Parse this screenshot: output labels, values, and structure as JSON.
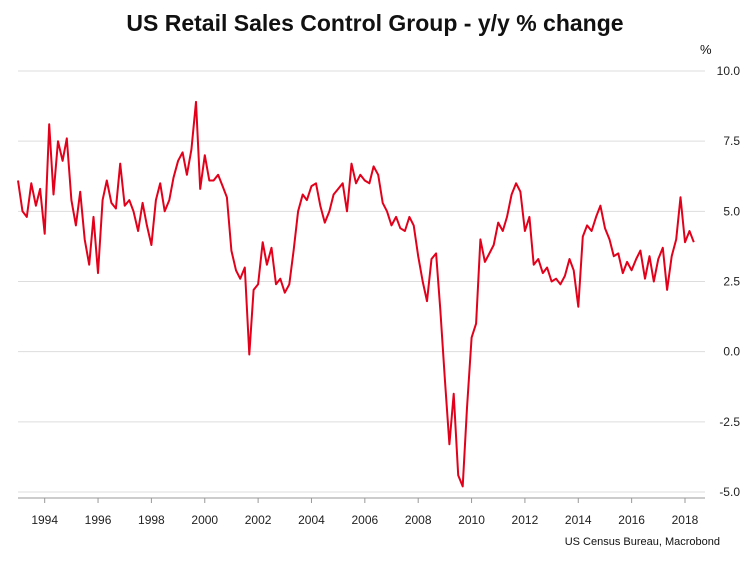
{
  "title": "US Retail Sales Control Group - y/y % change",
  "unit": "%",
  "source": "US Census Bureau, Macrobond",
  "chart_data": {
    "type": "line",
    "title": "US Retail Sales Control Group - y/y % change",
    "xlabel": "",
    "ylabel": "%",
    "xlim": [
      1993.0,
      2018.75
    ],
    "ylim": [
      -5.0,
      10.0
    ],
    "yticks": [
      10.0,
      7.5,
      5.0,
      2.5,
      0.0,
      -2.5,
      -5.0
    ],
    "ytick_labels": [
      "10.0",
      "7.5",
      "5.0",
      "2.5",
      "0.0",
      "-2.5",
      "-5.0"
    ],
    "xticks": [
      1994,
      1996,
      1998,
      2000,
      2002,
      2004,
      2006,
      2008,
      2010,
      2012,
      2014,
      2016,
      2018
    ],
    "xtick_labels": [
      "1994",
      "1996",
      "1998",
      "2000",
      "2002",
      "2004",
      "2006",
      "2008",
      "2010",
      "2012",
      "2014",
      "2016",
      "2018"
    ],
    "grid": "horizontal",
    "color": "#e3001b",
    "series": [
      {
        "x": [
          1993.0,
          1993.17,
          1993.33,
          1993.5,
          1993.67,
          1993.83,
          1994.0,
          1994.17,
          1994.33,
          1994.5,
          1994.67,
          1994.83,
          1995.0,
          1995.17,
          1995.33,
          1995.5,
          1995.67,
          1995.83,
          1996.0,
          1996.17,
          1996.33,
          1996.5,
          1996.67,
          1996.83,
          1997.0,
          1997.17,
          1997.33,
          1997.5,
          1997.67,
          1997.83,
          1998.0,
          1998.17,
          1998.33,
          1998.5,
          1998.67,
          1998.83,
          1999.0,
          1999.17,
          1999.33,
          1999.5,
          1999.67,
          1999.83,
          2000.0,
          2000.17,
          2000.33,
          2000.5,
          2000.67,
          2000.83,
          2001.0,
          2001.17,
          2001.33,
          2001.5,
          2001.67,
          2001.83,
          2002.0,
          2002.17,
          2002.33,
          2002.5,
          2002.67,
          2002.83,
          2003.0,
          2003.17,
          2003.33,
          2003.5,
          2003.67,
          2003.83,
          2004.0,
          2004.17,
          2004.33,
          2004.5,
          2004.67,
          2004.83,
          2005.0,
          2005.17,
          2005.33,
          2005.5,
          2005.67,
          2005.83,
          2006.0,
          2006.17,
          2006.33,
          2006.5,
          2006.67,
          2006.83,
          2007.0,
          2007.17,
          2007.33,
          2007.5,
          2007.67,
          2007.83,
          2008.0,
          2008.17,
          2008.33,
          2008.5,
          2008.67,
          2008.83,
          2009.0,
          2009.17,
          2009.33,
          2009.5,
          2009.67,
          2009.83,
          2010.0,
          2010.17,
          2010.33,
          2010.5,
          2010.67,
          2010.83,
          2011.0,
          2011.17,
          2011.33,
          2011.5,
          2011.67,
          2011.83,
          2012.0,
          2012.17,
          2012.33,
          2012.5,
          2012.67,
          2012.83,
          2013.0,
          2013.17,
          2013.33,
          2013.5,
          2013.67,
          2013.83,
          2014.0,
          2014.17,
          2014.33,
          2014.5,
          2014.67,
          2014.83,
          2015.0,
          2015.17,
          2015.33,
          2015.5,
          2015.67,
          2015.83,
          2016.0,
          2016.17,
          2016.33,
          2016.5,
          2016.67,
          2016.83,
          2017.0,
          2017.17,
          2017.33,
          2017.5,
          2017.67,
          2017.83,
          2018.0,
          2018.17,
          2018.33
        ],
        "y": [
          6.1,
          5.0,
          4.8,
          6.0,
          5.2,
          5.8,
          4.2,
          8.1,
          5.6,
          7.5,
          6.8,
          7.6,
          5.4,
          4.5,
          5.7,
          4.0,
          3.1,
          4.8,
          2.8,
          5.4,
          6.1,
          5.3,
          5.1,
          6.7,
          5.2,
          5.4,
          5.0,
          4.3,
          5.3,
          4.5,
          3.8,
          5.4,
          6.0,
          5.0,
          5.4,
          6.2,
          6.8,
          7.1,
          6.3,
          7.2,
          8.9,
          5.8,
          7.0,
          6.1,
          6.1,
          6.3,
          5.9,
          5.5,
          3.6,
          2.9,
          2.6,
          3.0,
          -0.1,
          2.2,
          2.4,
          3.9,
          3.1,
          3.7,
          2.4,
          2.6,
          2.1,
          2.4,
          3.6,
          5.0,
          5.6,
          5.4,
          5.9,
          6.0,
          5.2,
          4.6,
          5.0,
          5.6,
          5.8,
          6.0,
          5.0,
          6.7,
          6.0,
          6.3,
          6.1,
          6.0,
          6.6,
          6.3,
          5.3,
          5.0,
          4.5,
          4.8,
          4.4,
          4.3,
          4.8,
          4.5,
          3.4,
          2.5,
          1.8,
          3.3,
          3.5,
          1.5,
          -1.0,
          -3.3,
          -1.5,
          -4.4,
          -4.8,
          -2.0,
          0.5,
          1.0,
          4.0,
          3.2,
          3.5,
          3.8,
          4.6,
          4.3,
          4.8,
          5.6,
          6.0,
          5.7,
          4.3,
          4.8,
          3.1,
          3.3,
          2.8,
          3.0,
          2.5,
          2.6,
          2.4,
          2.7,
          3.3,
          2.9,
          1.6,
          4.1,
          4.5,
          4.3,
          4.8,
          5.2,
          4.4,
          4.0,
          3.4,
          3.5,
          2.8,
          3.2,
          2.9,
          3.3,
          3.6,
          2.6,
          3.4,
          2.5,
          3.3,
          3.7,
          2.2,
          3.4,
          4.0,
          5.5,
          3.9,
          4.3,
          3.9
        ]
      }
    ]
  }
}
